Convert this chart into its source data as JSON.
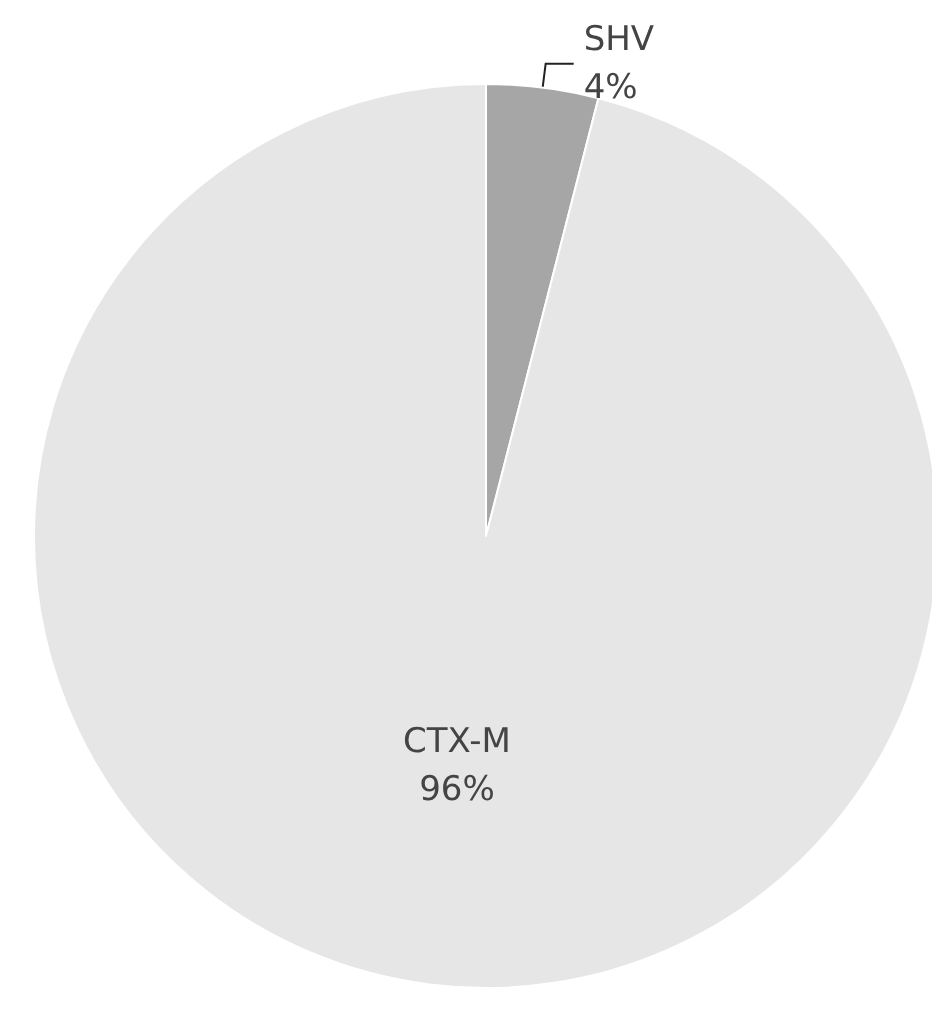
{
  "chart_data": {
    "type": "pie",
    "categories": [
      "SHV",
      "CTX-M"
    ],
    "values": [
      4,
      96
    ],
    "value_labels": [
      "4%",
      "96%"
    ],
    "colors": [
      "#a6a6a6",
      "#e6e6e6"
    ],
    "legend": false
  }
}
